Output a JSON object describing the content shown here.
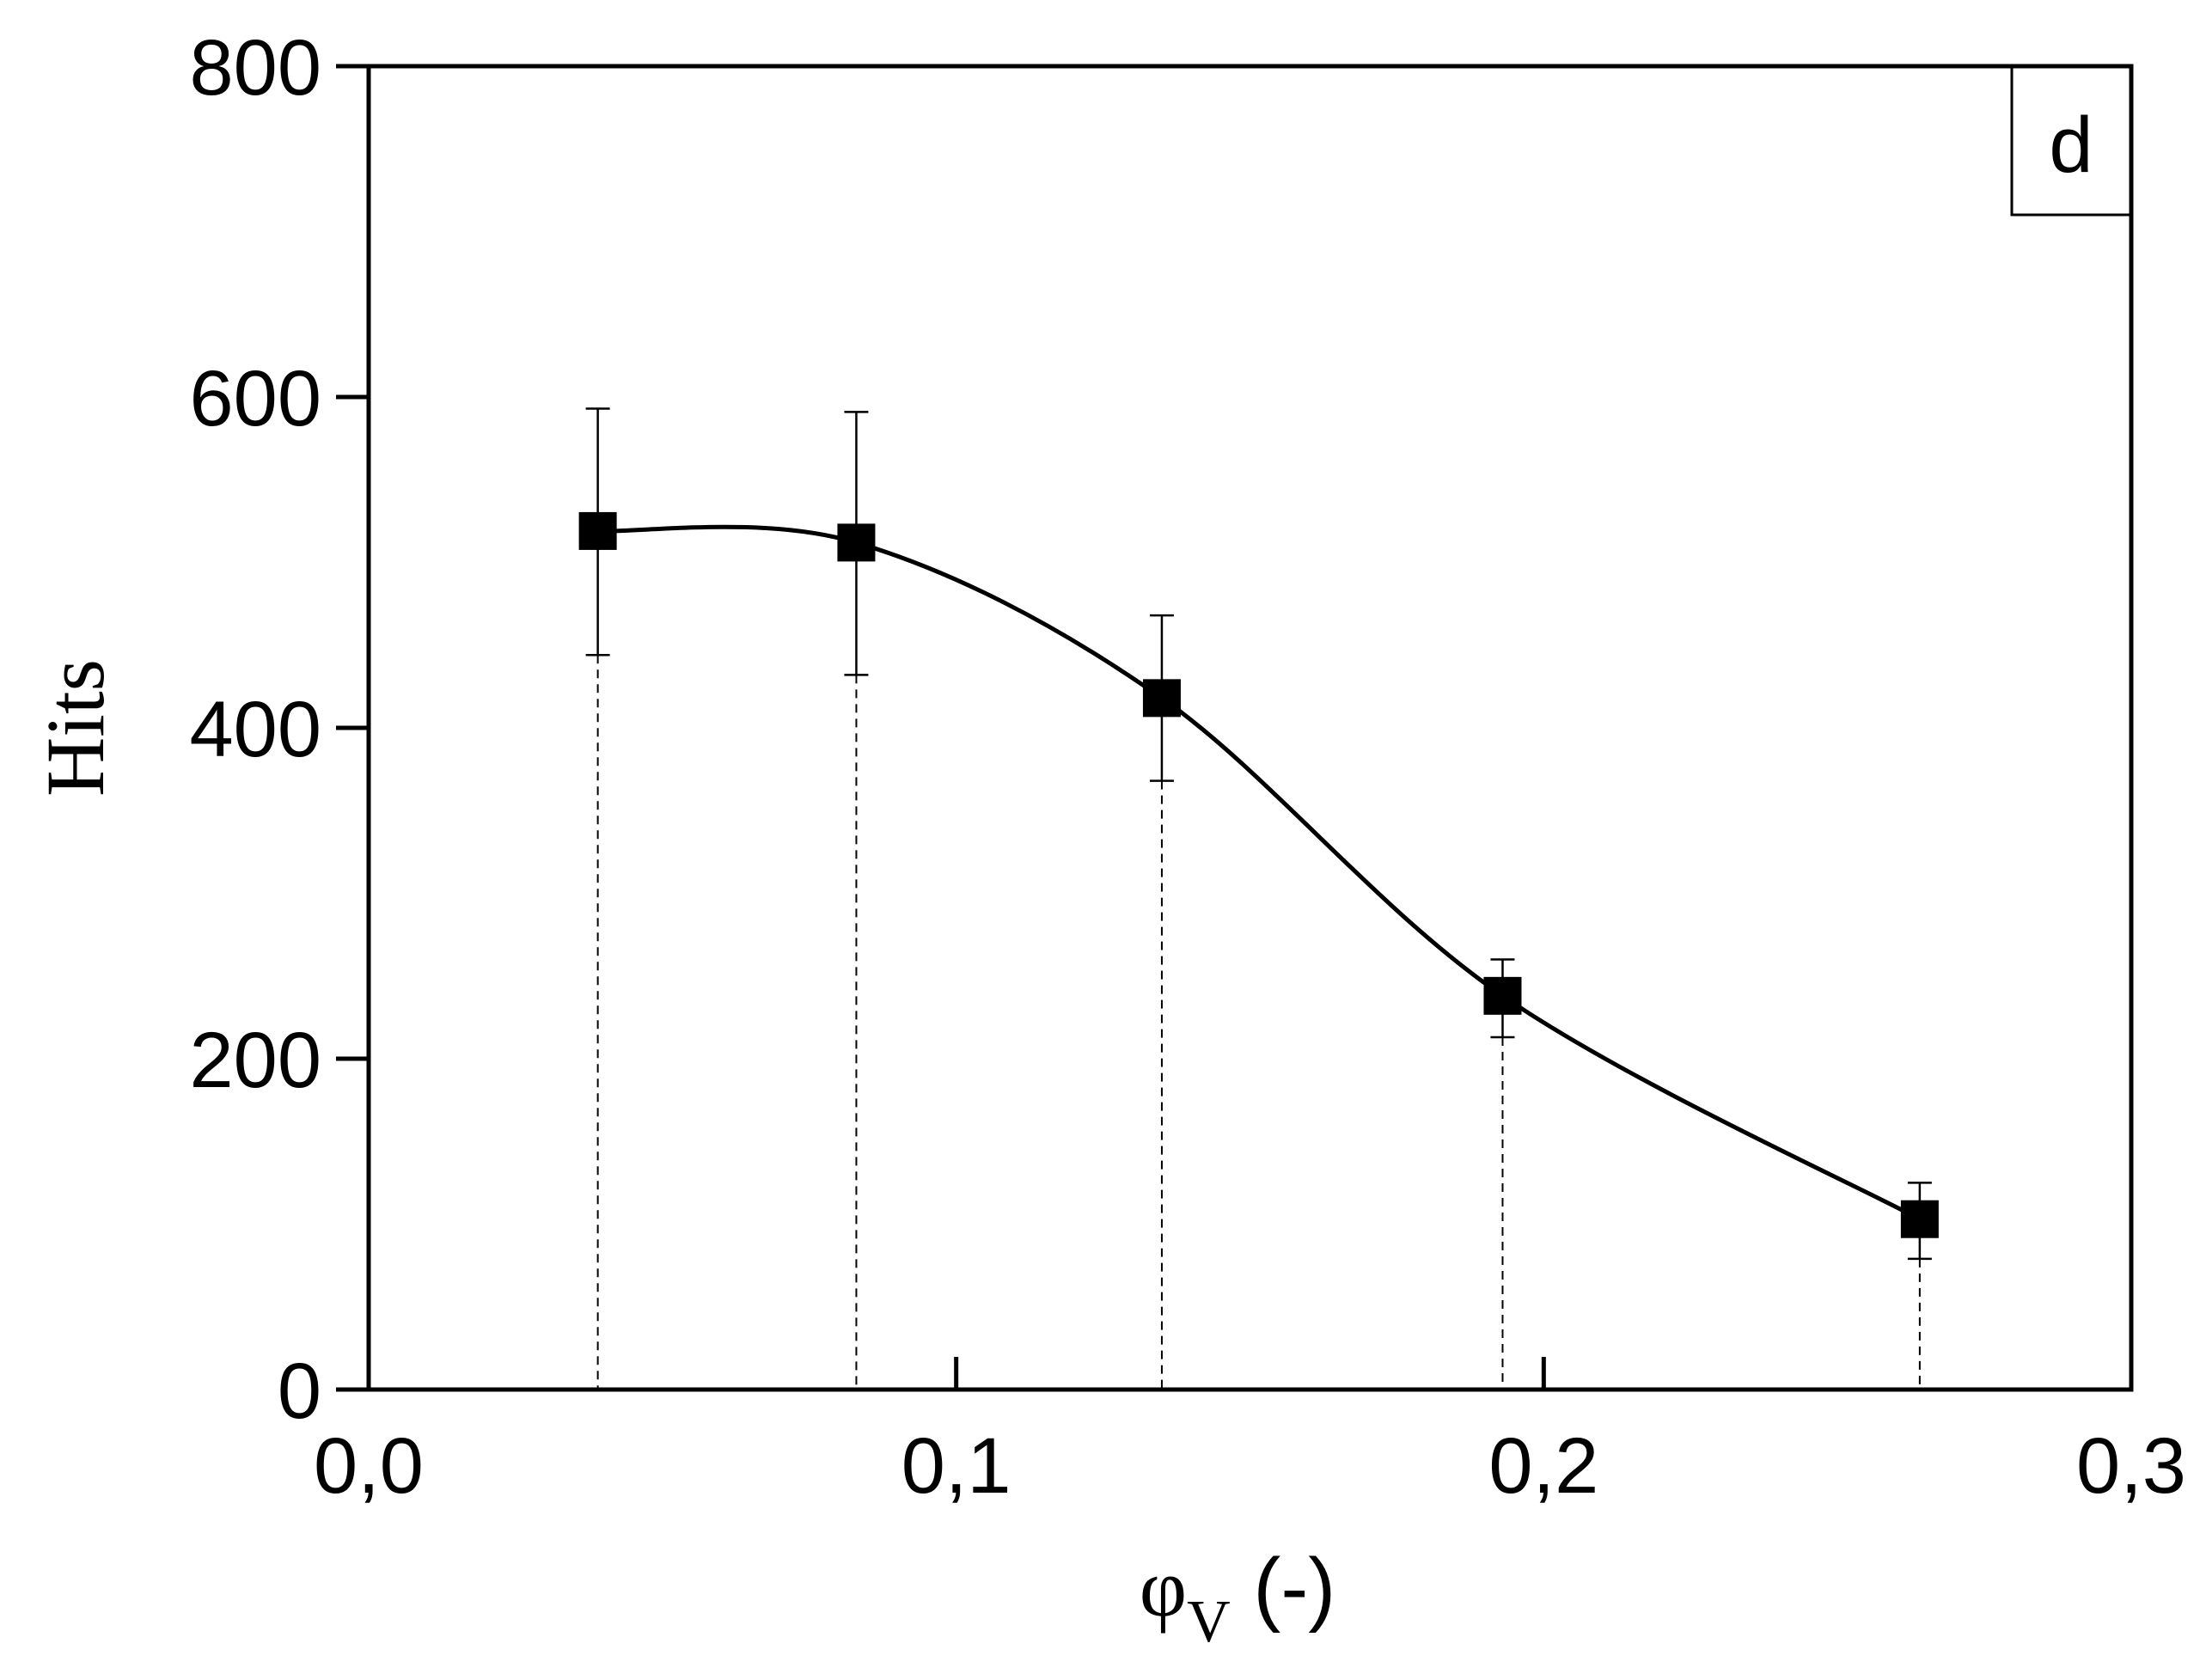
{
  "chart_data": {
    "type": "line",
    "title": "",
    "panel_label": "d",
    "xlabel": {
      "symbol": "φ",
      "subscript": "V",
      "unit": " (-)"
    },
    "ylabel": "Hits",
    "xlim": [
      0,
      0.3
    ],
    "ylim": [
      0,
      800
    ],
    "xticks": [
      0,
      0.1,
      0.2,
      0.3
    ],
    "xtick_labels": [
      "0,0",
      "0,1",
      "0,2",
      "0,3"
    ],
    "yticks": [
      0,
      200,
      400,
      600,
      800
    ],
    "ytick_labels": [
      "0",
      "200",
      "400",
      "600",
      "800"
    ],
    "grid": false,
    "series": [
      {
        "name": "Hits",
        "marker": "square",
        "color": "#000000",
        "x": [
          0.039,
          0.083,
          0.135,
          0.193,
          0.264
        ],
        "y": [
          519,
          512,
          418,
          238,
          103
        ],
        "err_high": [
          593,
          591,
          468,
          260,
          125
        ],
        "err_low": [
          444,
          432,
          368,
          213,
          79
        ]
      }
    ]
  }
}
